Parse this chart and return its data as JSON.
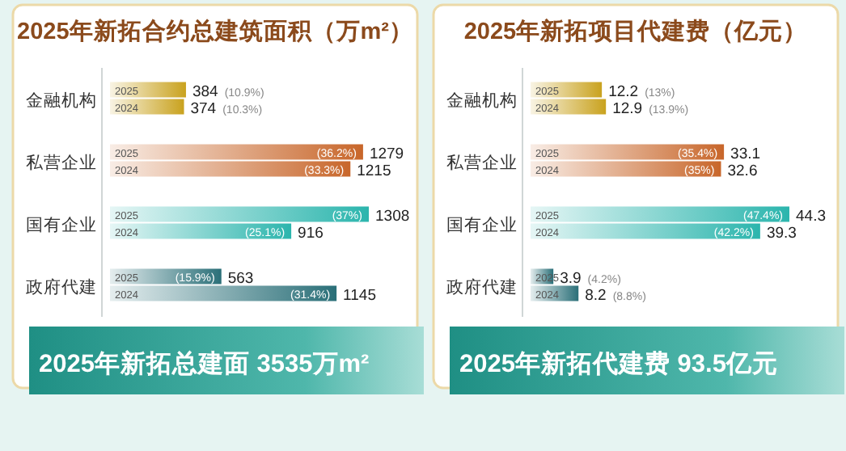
{
  "chart_data": [
    {
      "type": "bar",
      "orientation": "horizontal",
      "title": "2025年新拓合约总建筑面积（万m²）",
      "categories": [
        "金融机构",
        "私营企业",
        "国有企业",
        "政府代建"
      ],
      "series": [
        {
          "name": "2025",
          "colors": [
            "#c9a21e",
            "#c8662a",
            "#2bb5ad",
            "#2a6f78"
          ],
          "values": [
            384,
            1279,
            1308,
            563
          ],
          "value_labels": [
            "384 (10.9%)",
            "1279",
            "1308",
            "563"
          ]
        },
        {
          "name": "2024",
          "colors": [
            "#c9a21e",
            "#c8662a",
            "#2bb5ad",
            "#2a6f78"
          ],
          "values": [
            374,
            1215,
            916,
            1145
          ],
          "value_labels": [
            "374 (10.3%)",
            "1215",
            "916",
            "1145"
          ]
        }
      ],
      "annotations": [
        {
          "text": "(36.2%)",
          "x": 1279,
          "y": "私营企业"
        },
        {
          "text": "(33.3%)",
          "x": 1215,
          "y": "私营企业"
        },
        {
          "text": "(37%)",
          "x": 1308,
          "y": "国有企业"
        },
        {
          "text": "(25.1%)",
          "x": 916,
          "y": "国有企业"
        },
        {
          "text": "(15.9%)",
          "x": 563,
          "y": "政府代建"
        },
        {
          "text": "(31.4%)",
          "x": 1145,
          "y": "政府代建"
        },
        "2025年新拓总建面 3535万m²"
      ]
    },
    {
      "type": "bar",
      "orientation": "horizontal",
      "title": "2025年新拓项目代建费（亿元）",
      "categories": [
        "金融机构",
        "私营企业",
        "国有企业",
        "政府代建"
      ],
      "series": [
        {
          "name": "2025",
          "colors": [
            "#c9a21e",
            "#c8662a",
            "#2bb5ad",
            "#2a6f78"
          ],
          "values": [
            12.2,
            33.1,
            44.3,
            3.9
          ],
          "value_labels": [
            "12.2 (13%)",
            "33.1",
            "44.3",
            "3.9 (4.2%)"
          ]
        },
        {
          "name": "2024",
          "colors": [
            "#c9a21e",
            "#c8662a",
            "#2bb5ad",
            "#2a6f78"
          ],
          "values": [
            12.9,
            32.6,
            39.3,
            8.2
          ],
          "value_labels": [
            "12.9 (13.9%)",
            "32.6",
            "39.3",
            "8.2 (8.8%)"
          ]
        }
      ],
      "annotations": [
        {
          "text": "(35.4%)",
          "x": 33.1,
          "y": "私营企业"
        },
        {
          "text": "(35%)",
          "x": 32.6,
          "y": "私营企业"
        },
        {
          "text": "(47.4%)",
          "x": 44.3,
          "y": "国有企业"
        },
        {
          "text": "(42.2%)",
          "x": 39.3,
          "y": "国有企业"
        },
        "2025年新拓代建费 93.5亿元"
      ]
    }
  ]
}
